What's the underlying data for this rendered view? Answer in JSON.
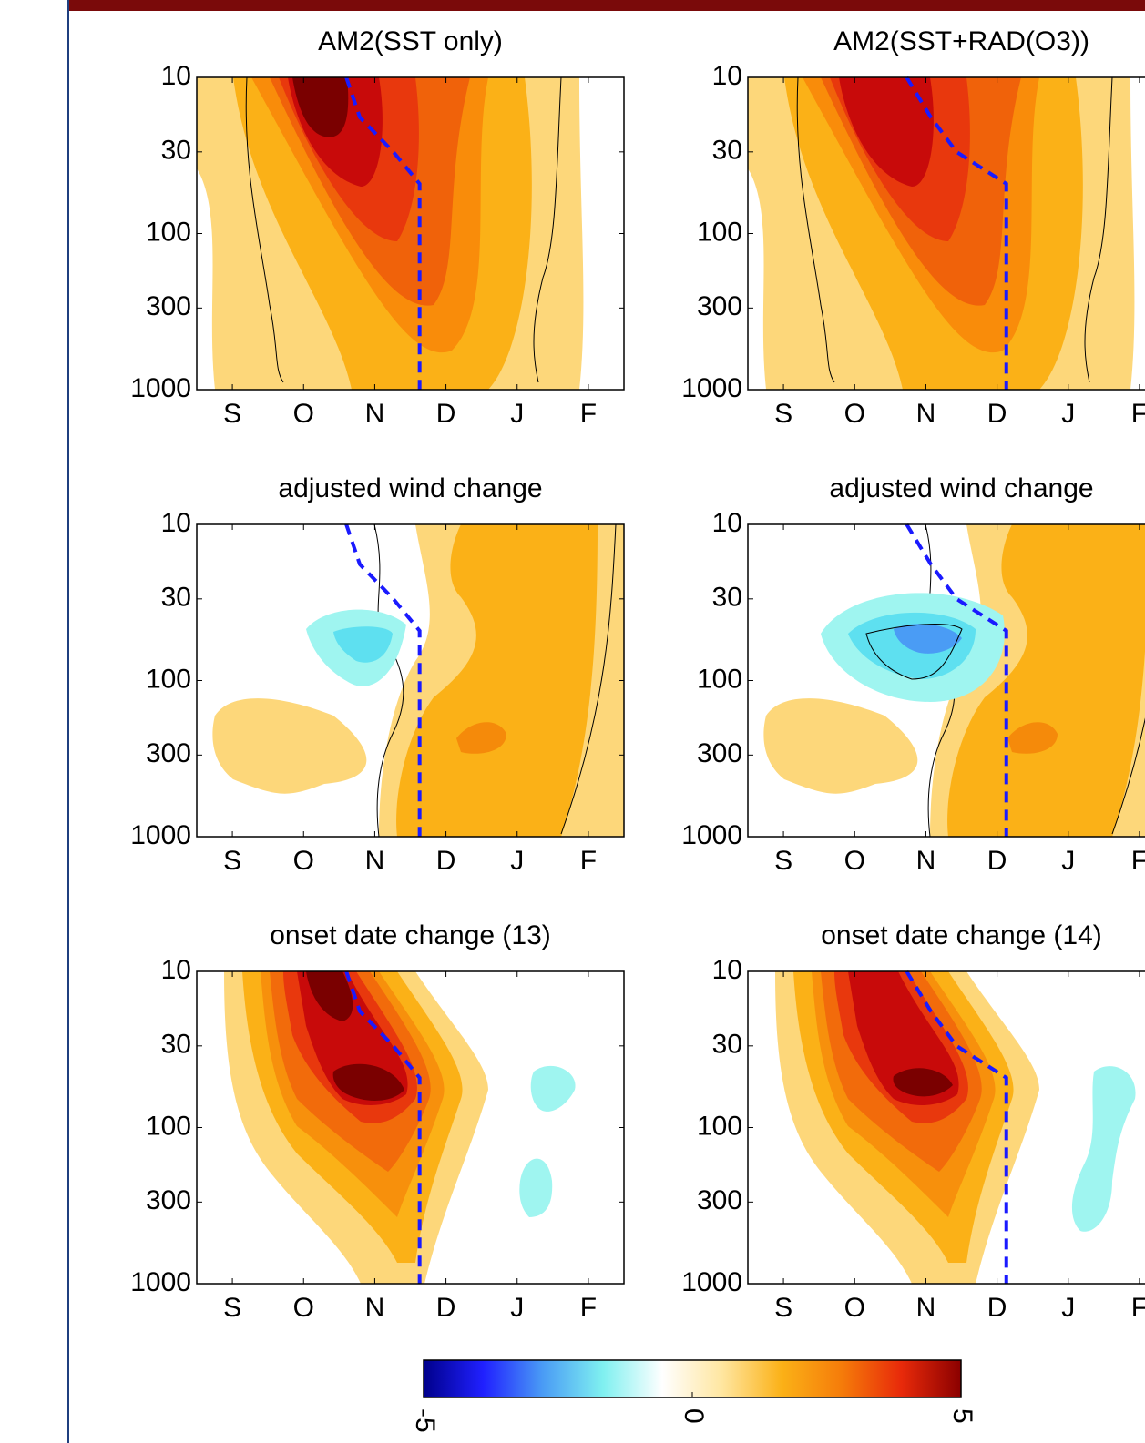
{
  "chart_data": [
    {
      "type": "contour",
      "title": "AM2(SST only)",
      "xlim": [
        -0.5,
        5.5
      ],
      "xticks": [
        {
          "value": 0,
          "label": "S"
        },
        {
          "value": 1,
          "label": "O"
        },
        {
          "value": 2,
          "label": "N"
        },
        {
          "value": 3,
          "label": "D"
        },
        {
          "value": 4,
          "label": "J"
        },
        {
          "value": 5,
          "label": "F"
        }
      ],
      "ylim": [
        1000,
        10
      ],
      "yticks": [
        10,
        30,
        100,
        300,
        1000
      ],
      "yscale": "log",
      "onset_line": {
        "color": "#1a1aff",
        "x": [
          1.6,
          1.79,
          2.26,
          2.63,
          2.63
        ],
        "y": [
          10,
          18,
          30,
          48,
          1000
        ]
      }
    },
    {
      "type": "contour",
      "title": "AM2(SST+RAD(O3))",
      "xlim": [
        -0.5,
        5.5
      ],
      "xticks": [
        {
          "value": 0,
          "label": "S"
        },
        {
          "value": 1,
          "label": "O"
        },
        {
          "value": 2,
          "label": "N"
        },
        {
          "value": 3,
          "label": "D"
        },
        {
          "value": 4,
          "label": "J"
        },
        {
          "value": 5,
          "label": "F"
        }
      ],
      "ylim": [
        1000,
        10
      ],
      "yticks": [
        10,
        30,
        100,
        300,
        1000
      ],
      "yscale": "log",
      "onset_line": {
        "color": "#1a1aff",
        "x": [
          1.73,
          2.07,
          2.43,
          3.13,
          3.13
        ],
        "y": [
          10,
          18,
          30,
          48,
          1000
        ]
      }
    },
    {
      "type": "contour",
      "title": "adjusted wind change",
      "xlim": [
        -0.5,
        5.5
      ],
      "xticks": [
        {
          "value": 0,
          "label": "S"
        },
        {
          "value": 1,
          "label": "O"
        },
        {
          "value": 2,
          "label": "N"
        },
        {
          "value": 3,
          "label": "D"
        },
        {
          "value": 4,
          "label": "J"
        },
        {
          "value": 5,
          "label": "F"
        }
      ],
      "ylim": [
        1000,
        10
      ],
      "yticks": [
        10,
        30,
        100,
        300,
        1000
      ],
      "yscale": "log",
      "onset_line": {
        "color": "#1a1aff",
        "x": [
          1.6,
          1.79,
          2.26,
          2.63,
          2.63
        ],
        "y": [
          10,
          18,
          30,
          48,
          1000
        ]
      }
    },
    {
      "type": "contour",
      "title": "adjusted wind change",
      "xlim": [
        -0.5,
        5.5
      ],
      "xticks": [
        {
          "value": 0,
          "label": "S"
        },
        {
          "value": 1,
          "label": "O"
        },
        {
          "value": 2,
          "label": "N"
        },
        {
          "value": 3,
          "label": "D"
        },
        {
          "value": 4,
          "label": "J"
        },
        {
          "value": 5,
          "label": "F"
        }
      ],
      "ylim": [
        1000,
        10
      ],
      "yticks": [
        10,
        30,
        100,
        300,
        1000
      ],
      "yscale": "log",
      "onset_line": {
        "color": "#1a1aff",
        "x": [
          1.73,
          2.07,
          2.43,
          3.13,
          3.13
        ],
        "y": [
          10,
          18,
          30,
          48,
          1000
        ]
      }
    },
    {
      "type": "contour",
      "title": "onset date change (13)",
      "xlim": [
        -0.5,
        5.5
      ],
      "xticks": [
        {
          "value": 0,
          "label": "S"
        },
        {
          "value": 1,
          "label": "O"
        },
        {
          "value": 2,
          "label": "N"
        },
        {
          "value": 3,
          "label": "D"
        },
        {
          "value": 4,
          "label": "J"
        },
        {
          "value": 5,
          "label": "F"
        }
      ],
      "ylim": [
        1000,
        10
      ],
      "yticks": [
        10,
        30,
        100,
        300,
        1000
      ],
      "yscale": "log",
      "onset_line": {
        "color": "#1a1aff",
        "x": [
          1.6,
          1.79,
          2.26,
          2.63,
          2.63
        ],
        "y": [
          10,
          18,
          30,
          48,
          1000
        ]
      }
    },
    {
      "type": "contour",
      "title": "onset date change (14)",
      "xlim": [
        -0.5,
        5.5
      ],
      "xticks": [
        {
          "value": 0,
          "label": "S"
        },
        {
          "value": 1,
          "label": "O"
        },
        {
          "value": 2,
          "label": "N"
        },
        {
          "value": 3,
          "label": "D"
        },
        {
          "value": 4,
          "label": "J"
        },
        {
          "value": 5,
          "label": "F"
        }
      ],
      "ylim": [
        1000,
        10
      ],
      "yticks": [
        10,
        30,
        100,
        300,
        1000
      ],
      "yscale": "log",
      "onset_line": {
        "color": "#1a1aff",
        "x": [
          1.73,
          2.07,
          2.43,
          3.13,
          3.13
        ],
        "y": [
          10,
          18,
          30,
          48,
          1000
        ]
      }
    },
    {
      "type": "colorbar",
      "xlim": [
        -5,
        5
      ],
      "xticks": [
        -5,
        0,
        5
      ],
      "colors": [
        "#00008b",
        "#2020ff",
        "#4a9cf5",
        "#7ff0f0",
        "#ffffff",
        "#ffe6a0",
        "#fbb117",
        "#f57c0a",
        "#e82a0a",
        "#8b0000"
      ]
    }
  ]
}
